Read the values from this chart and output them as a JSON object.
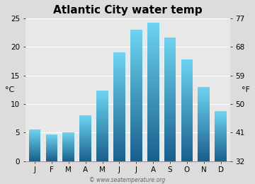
{
  "title": "Atlantic City water temp",
  "months": [
    "J",
    "F",
    "M",
    "A",
    "M",
    "J",
    "J",
    "A",
    "S",
    "O",
    "N",
    "D"
  ],
  "values_c": [
    5.5,
    4.7,
    5.0,
    8.0,
    12.3,
    19.0,
    23.0,
    24.3,
    21.7,
    17.8,
    13.0,
    8.7
  ],
  "ylim_c": [
    0,
    25
  ],
  "yticks_c": [
    0,
    5,
    10,
    15,
    20,
    25
  ],
  "yticks_f": [
    32,
    41,
    50,
    59,
    68,
    77
  ],
  "ylabel_left": "°C",
  "ylabel_right": "°F",
  "bar_color_top": "#6dd4f0",
  "bar_color_bottom": "#1a5f8c",
  "fig_bg": "#dcdcdc",
  "plot_bg": "#e8e8e8",
  "grid_color": "#ffffff",
  "watermark": "© www.seatemperature.org",
  "title_fontsize": 11,
  "axis_label_fontsize": 8,
  "tick_fontsize": 7.5,
  "watermark_fontsize": 5.5
}
